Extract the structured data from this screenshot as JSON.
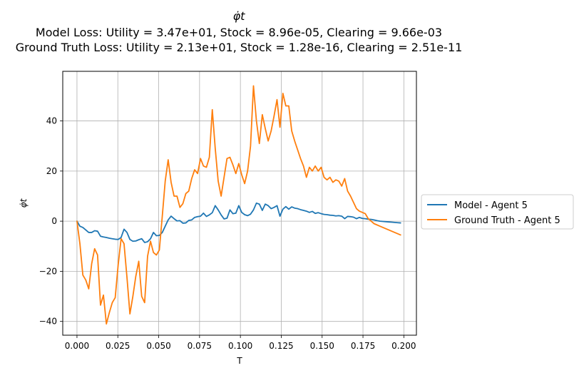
{
  "chart_data": {
    "type": "line",
    "title": "φ̇t",
    "subtitle_lines": [
      "Model Loss: Utility = 3.47e+01, Stock = 8.96e-05, Clearing = 9.66e-03",
      "Ground Truth Loss: Utility = 2.13e+01, Stock = 1.28e-16, Clearing = 2.51e-11"
    ],
    "xlabel": "T",
    "ylabel": "φ̇t",
    "xlim": [
      -0.0087,
      0.2077
    ],
    "ylim": [
      -45.5,
      59.8
    ],
    "xticks": [
      0.0,
      0.025,
      0.05,
      0.075,
      0.1,
      0.125,
      0.15,
      0.175,
      0.2
    ],
    "xtick_labels": [
      "0.000",
      "0.025",
      "0.050",
      "0.075",
      "0.100",
      "0.125",
      "0.150",
      "0.175",
      "0.200"
    ],
    "yticks": [
      -40,
      -20,
      0,
      20,
      40
    ],
    "ytick_labels": [
      "−40",
      "−20",
      "0",
      "20",
      "40"
    ],
    "grid": true,
    "legend_position": "right-outside",
    "x": [
      0.0,
      0.0018,
      0.0036,
      0.0054,
      0.0072,
      0.009,
      0.0108,
      0.0126,
      0.0144,
      0.0162,
      0.018,
      0.0198,
      0.0216,
      0.0234,
      0.0252,
      0.027,
      0.0288,
      0.0306,
      0.0324,
      0.0342,
      0.036,
      0.0378,
      0.0396,
      0.0414,
      0.0432,
      0.045,
      0.0468,
      0.0486,
      0.0504,
      0.0522,
      0.054,
      0.0558,
      0.0576,
      0.0594,
      0.0612,
      0.063,
      0.0648,
      0.0666,
      0.0684,
      0.0702,
      0.072,
      0.0738,
      0.0756,
      0.0774,
      0.0792,
      0.081,
      0.0828,
      0.0846,
      0.0864,
      0.0882,
      0.09,
      0.0918,
      0.0936,
      0.0954,
      0.0972,
      0.099,
      0.1008,
      0.1026,
      0.1044,
      0.1062,
      0.108,
      0.1098,
      0.1116,
      0.1134,
      0.1152,
      0.117,
      0.1188,
      0.1206,
      0.1224,
      0.1242,
      0.126,
      0.1278,
      0.1296,
      0.1314,
      0.1332,
      0.135,
      0.1368,
      0.1386,
      0.1404,
      0.1422,
      0.144,
      0.1458,
      0.1476,
      0.1494,
      0.1512,
      0.153,
      0.1548,
      0.1566,
      0.1584,
      0.1602,
      0.162,
      0.1638,
      0.1656,
      0.1674,
      0.1692,
      0.171,
      0.1728,
      0.1746,
      0.1764,
      0.1782,
      0.18,
      0.1818,
      0.1836,
      0.1854,
      0.1872,
      0.189,
      0.1908,
      0.1926,
      0.1944,
      0.1962,
      0.198
    ],
    "series": [
      {
        "name": "Model - Agent 5",
        "color": "#1f77b4",
        "values": [
          0.0,
          -2.0,
          -2.5,
          -3.5,
          -4.5,
          -4.5,
          -3.8,
          -4.0,
          -6.0,
          -6.3,
          -6.5,
          -6.8,
          -7.0,
          -7.2,
          -7.3,
          -6.5,
          -3.2,
          -4.5,
          -7.3,
          -8.0,
          -7.9,
          -7.4,
          -7.0,
          -8.5,
          -8.2,
          -7.0,
          -4.5,
          -5.8,
          -5.7,
          -4.5,
          -2.0,
          0.5,
          2.0,
          1.0,
          0.1,
          0.2,
          -0.8,
          -0.7,
          0.3,
          0.5,
          1.5,
          1.8,
          2.0,
          3.2,
          1.9,
          2.5,
          3.4,
          6.2,
          4.5,
          2.5,
          0.9,
          1.2,
          4.5,
          3.0,
          3.2,
          6.2,
          3.5,
          2.6,
          2.2,
          2.8,
          4.5,
          7.2,
          6.8,
          4.3,
          6.8,
          6.2,
          5.0,
          5.5,
          6.2,
          2.0,
          4.8,
          5.8,
          4.8,
          5.7,
          5.2,
          5.0,
          4.6,
          4.3,
          4.0,
          3.5,
          3.9,
          3.1,
          3.4,
          3.0,
          2.7,
          2.6,
          2.4,
          2.3,
          2.1,
          2.2,
          2.0,
          1.0,
          1.9,
          1.8,
          1.6,
          1.0,
          1.5,
          1.1,
          1.0,
          0.8,
          0.7,
          0.5,
          0.2,
          0.0,
          -0.1,
          -0.2,
          -0.3,
          -0.4,
          -0.5,
          -0.6,
          -0.7
        ]
      },
      {
        "name": "Ground Truth - Agent 5",
        "color": "#ff7f0e",
        "values": [
          0.0,
          -9.0,
          -21.5,
          -23.5,
          -27.0,
          -17.0,
          -11.0,
          -13.5,
          -33.5,
          -29.5,
          -41.0,
          -36.5,
          -32.5,
          -30.5,
          -17.5,
          -7.0,
          -9.0,
          -22.5,
          -37.0,
          -30.0,
          -22.0,
          -16.0,
          -30.0,
          -32.5,
          -14.0,
          -8.0,
          -12.5,
          -13.5,
          -11.5,
          2.0,
          16.0,
          24.5,
          15.5,
          10.0,
          10.0,
          5.5,
          7.0,
          11.0,
          12.0,
          17.0,
          20.5,
          19.0,
          25.0,
          22.0,
          21.5,
          25.5,
          44.5,
          29.0,
          16.0,
          10.0,
          17.5,
          25.0,
          25.5,
          22.5,
          19.0,
          23.0,
          18.5,
          15.0,
          20.0,
          30.0,
          54.0,
          40.0,
          31.0,
          42.5,
          37.0,
          32.0,
          36.0,
          42.0,
          48.5,
          37.5,
          51.0,
          46.0,
          46.0,
          36.0,
          32.0,
          28.5,
          25.0,
          22.0,
          17.5,
          21.5,
          20.0,
          22.0,
          20.0,
          21.5,
          17.5,
          16.5,
          17.5,
          15.5,
          16.5,
          16.0,
          14.0,
          17.0,
          12.0,
          10.0,
          7.5,
          5.0,
          4.0,
          3.5,
          3.0,
          1.0,
          0.0,
          -1.0,
          -1.5,
          -2.0,
          -2.5,
          -3.0,
          -3.5,
          -4.0,
          -4.5,
          -5.0,
          -5.5
        ]
      }
    ]
  }
}
